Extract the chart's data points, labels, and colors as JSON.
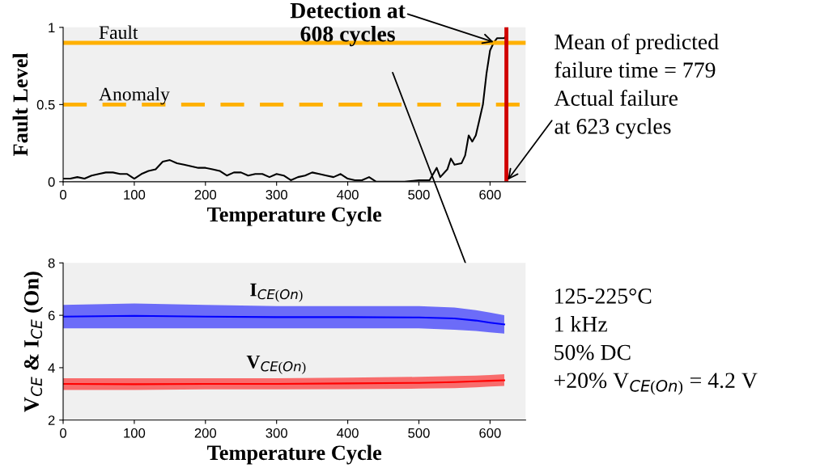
{
  "chart_data": [
    {
      "type": "line",
      "xlabel": "Temperature Cycle",
      "ylabel": "Fault Level",
      "xlim": [
        0,
        650
      ],
      "ylim": [
        0,
        1
      ],
      "xticks": [
        0,
        100,
        200,
        300,
        400,
        500,
        600
      ],
      "yticks": [
        0,
        0.5,
        1
      ],
      "grid": false,
      "marker": "none",
      "line_style": "solid",
      "series": [
        {
          "color": "#000000",
          "x": [
            0,
            10,
            20,
            30,
            40,
            50,
            60,
            70,
            80,
            90,
            100,
            110,
            120,
            130,
            140,
            150,
            160,
            170,
            180,
            190,
            200,
            210,
            220,
            230,
            240,
            250,
            260,
            270,
            280,
            290,
            300,
            310,
            320,
            330,
            340,
            350,
            360,
            370,
            380,
            390,
            400,
            410,
            420,
            430,
            440,
            460,
            480,
            500,
            515,
            525,
            530,
            540,
            545,
            550,
            560,
            565,
            570,
            575,
            580,
            585,
            590,
            595,
            600,
            605,
            610,
            620,
            623
          ],
          "values": [
            0.02,
            0.02,
            0.03,
            0.02,
            0.04,
            0.05,
            0.06,
            0.06,
            0.05,
            0.05,
            0.02,
            0.05,
            0.07,
            0.08,
            0.13,
            0.14,
            0.12,
            0.11,
            0.1,
            0.09,
            0.09,
            0.08,
            0.07,
            0.04,
            0.06,
            0.06,
            0.04,
            0.05,
            0.05,
            0.03,
            0.05,
            0.04,
            0.01,
            0.03,
            0.04,
            0.06,
            0.05,
            0.04,
            0.03,
            0.05,
            0.02,
            0.01,
            0.01,
            0.03,
            0,
            0,
            0,
            0.01,
            0.01,
            0.09,
            0.03,
            0.08,
            0.15,
            0.11,
            0.12,
            0.17,
            0.3,
            0.26,
            0.3,
            0.4,
            0.5,
            0.7,
            0.85,
            0.9,
            0.93,
            0.93,
            0.95
          ]
        }
      ],
      "ref_lines": [
        {
          "axis": "y",
          "value": 0.9,
          "label": "Fault",
          "color": "#ffb000",
          "line_style": "solid"
        },
        {
          "axis": "y",
          "value": 0.5,
          "label": "Anomaly",
          "color": "#ffb000",
          "line_style": "dashed"
        },
        {
          "axis": "x",
          "value": 623,
          "label": null,
          "color": "#d00000",
          "line_style": "solid"
        }
      ],
      "annotations": [
        {
          "text": "Detection at\n608 cycles",
          "x": 608,
          "y": 0.9
        },
        {
          "text": "Mean of predicted\nfailure time = 779\nActual failure\nat 623 cycles",
          "x": 623,
          "y": 0
        }
      ]
    },
    {
      "type": "line",
      "xlabel": "Temperature Cycle",
      "ylabel": "V$_{CE}$ & I$_{CE}$ (On)",
      "xlim": [
        0,
        650
      ],
      "ylim": [
        2,
        8
      ],
      "xticks": [
        0,
        100,
        200,
        300,
        400,
        500,
        600
      ],
      "yticks": [
        2,
        4,
        6,
        8
      ],
      "grid": false,
      "marker": "none",
      "line_style": "solid",
      "series": [
        {
          "name": "I$_{CE(On)}$",
          "color": "#0000ff",
          "x": [
            0,
            100,
            200,
            300,
            400,
            500,
            550,
            580,
            600,
            620
          ],
          "values": [
            5.95,
            5.98,
            5.95,
            5.93,
            5.93,
            5.92,
            5.88,
            5.8,
            5.72,
            5.65
          ],
          "lower": [
            5.5,
            5.5,
            5.5,
            5.5,
            5.5,
            5.5,
            5.45,
            5.4,
            5.35,
            5.3
          ],
          "upper": [
            6.4,
            6.45,
            6.4,
            6.35,
            6.35,
            6.35,
            6.3,
            6.2,
            6.1,
            6.0
          ]
        },
        {
          "name": "V$_{CE(On)}$",
          "color": "#ff0000",
          "x": [
            0,
            100,
            200,
            300,
            400,
            500,
            550,
            580,
            600,
            620
          ],
          "values": [
            3.38,
            3.37,
            3.38,
            3.38,
            3.4,
            3.42,
            3.45,
            3.48,
            3.5,
            3.52
          ],
          "lower": [
            3.15,
            3.15,
            3.17,
            3.17,
            3.18,
            3.2,
            3.22,
            3.25,
            3.28,
            3.3
          ],
          "upper": [
            3.6,
            3.6,
            3.6,
            3.6,
            3.62,
            3.65,
            3.68,
            3.7,
            3.72,
            3.75
          ]
        }
      ],
      "annotations": [
        "125-225°C\n1 kHz\n50% DC\n+20% V$_{CE(On)}$ = 4.2 V"
      ]
    }
  ]
}
